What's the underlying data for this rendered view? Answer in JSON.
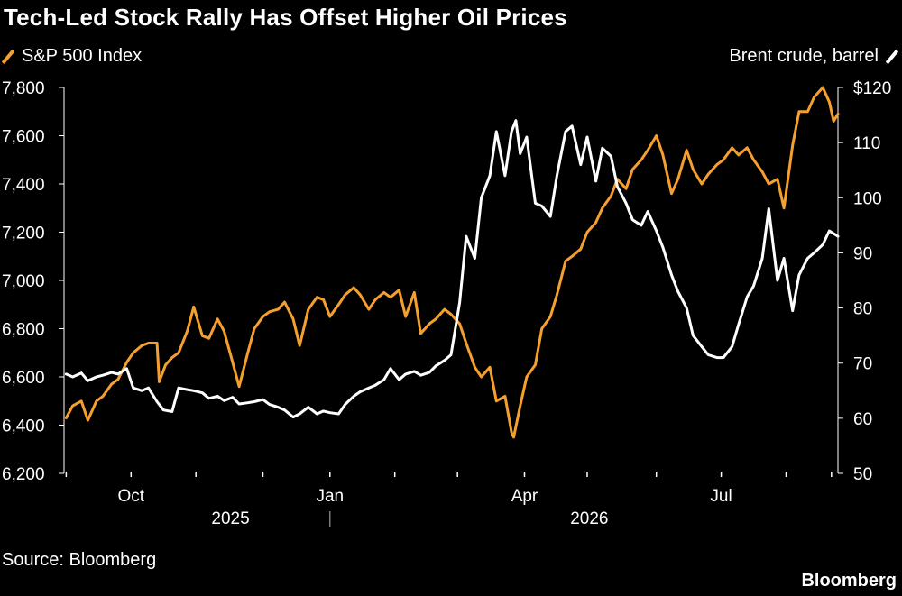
{
  "title": "Tech-Led Stock Rally Has Offset Higher Oil Prices",
  "source": "Source: Bloomberg",
  "brand": "Bloomberg",
  "legend": {
    "left_label": "S&P 500 Index",
    "right_label": "Brent crude, barrel"
  },
  "colors": {
    "background": "#000000",
    "sp500": "#f5a02e",
    "brent": "#ffffff"
  },
  "chart_data": {
    "type": "line",
    "title": "Tech-Led Stock Rally Has Offset Higher Oil Prices",
    "x_axis": {
      "range": [
        "2025-08-31",
        "2026-08-24"
      ],
      "ticks": [
        {
          "date": "2025-10-01",
          "label": "Oct"
        },
        {
          "date": "2026-01-01",
          "label": "Jan"
        },
        {
          "date": "2026-04-01",
          "label": "Apr"
        },
        {
          "date": "2026-07-01",
          "label": "Jul"
        }
      ],
      "minor_ticks": [
        "2025-09-01",
        "2025-10-31",
        "2025-12-01",
        "2026-01-31",
        "2026-03-01",
        "2026-04-30",
        "2026-06-01",
        "2026-07-31",
        "2026-08-21"
      ],
      "years": [
        {
          "label": "2025"
        },
        {
          "label": "2026"
        }
      ]
    },
    "y_left": {
      "min": 6200,
      "max": 7800,
      "ticks": [
        {
          "value": 6200,
          "label": "6,200"
        },
        {
          "value": 6400,
          "label": "6,400"
        },
        {
          "value": 6600,
          "label": "6,600"
        },
        {
          "value": 6800,
          "label": "6,800"
        },
        {
          "value": 7000,
          "label": "7,000"
        },
        {
          "value": 7200,
          "label": "7,200"
        },
        {
          "value": 7400,
          "label": "7,400"
        },
        {
          "value": 7600,
          "label": "7,600"
        },
        {
          "value": 7800,
          "label": "7,800"
        }
      ]
    },
    "y_right": {
      "min": 50,
      "max": 120,
      "ticks": [
        {
          "value": 50,
          "label": "50"
        },
        {
          "value": 60,
          "label": "60"
        },
        {
          "value": 70,
          "label": "70"
        },
        {
          "value": 80,
          "label": "80"
        },
        {
          "value": 90,
          "label": "90"
        },
        {
          "value": 100,
          "label": "100"
        },
        {
          "value": 110,
          "label": "110"
        },
        {
          "value": 120,
          "label": "$120"
        }
      ]
    },
    "grid": false,
    "series": [
      {
        "name": "S&P 500 Index",
        "axis": "left",
        "color": "#f5a02e",
        "points": [
          [
            "2025-09-01",
            6430
          ],
          [
            "2025-09-04",
            6480
          ],
          [
            "2025-09-08",
            6500
          ],
          [
            "2025-09-11",
            6420
          ],
          [
            "2025-09-15",
            6500
          ],
          [
            "2025-09-18",
            6520
          ],
          [
            "2025-09-22",
            6570
          ],
          [
            "2025-09-25",
            6590
          ],
          [
            "2025-09-29",
            6660
          ],
          [
            "2025-10-02",
            6700
          ],
          [
            "2025-10-06",
            6730
          ],
          [
            "2025-10-09",
            6740
          ],
          [
            "2025-10-13",
            6740
          ],
          [
            "2025-10-14",
            6580
          ],
          [
            "2025-10-17",
            6650
          ],
          [
            "2025-10-20",
            6680
          ],
          [
            "2025-10-23",
            6700
          ],
          [
            "2025-10-27",
            6790
          ],
          [
            "2025-10-30",
            6890
          ],
          [
            "2025-11-03",
            6770
          ],
          [
            "2025-11-06",
            6760
          ],
          [
            "2025-11-10",
            6840
          ],
          [
            "2025-11-13",
            6790
          ],
          [
            "2025-11-17",
            6660
          ],
          [
            "2025-11-20",
            6560
          ],
          [
            "2025-11-24",
            6700
          ],
          [
            "2025-11-27",
            6800
          ],
          [
            "2025-12-01",
            6850
          ],
          [
            "2025-12-04",
            6870
          ],
          [
            "2025-12-08",
            6880
          ],
          [
            "2025-12-11",
            6910
          ],
          [
            "2025-12-15",
            6840
          ],
          [
            "2025-12-18",
            6730
          ],
          [
            "2025-12-22",
            6880
          ],
          [
            "2025-12-26",
            6930
          ],
          [
            "2025-12-29",
            6920
          ],
          [
            "2026-01-01",
            6850
          ],
          [
            "2026-01-05",
            6900
          ],
          [
            "2026-01-08",
            6940
          ],
          [
            "2026-01-12",
            6970
          ],
          [
            "2026-01-15",
            6940
          ],
          [
            "2026-01-19",
            6880
          ],
          [
            "2026-01-22",
            6920
          ],
          [
            "2026-01-26",
            6950
          ],
          [
            "2026-01-29",
            6930
          ],
          [
            "2026-02-02",
            6960
          ],
          [
            "2026-02-05",
            6850
          ],
          [
            "2026-02-09",
            6950
          ],
          [
            "2026-02-12",
            6780
          ],
          [
            "2026-02-16",
            6820
          ],
          [
            "2026-02-19",
            6840
          ],
          [
            "2026-02-23",
            6880
          ],
          [
            "2026-02-26",
            6860
          ],
          [
            "2026-03-02",
            6820
          ],
          [
            "2026-03-05",
            6740
          ],
          [
            "2026-03-09",
            6640
          ],
          [
            "2026-03-12",
            6600
          ],
          [
            "2026-03-16",
            6640
          ],
          [
            "2026-03-19",
            6500
          ],
          [
            "2026-03-23",
            6520
          ],
          [
            "2026-03-26",
            6370
          ],
          [
            "2026-03-27",
            6350
          ],
          [
            "2026-03-30",
            6480
          ],
          [
            "2026-04-02",
            6600
          ],
          [
            "2026-04-06",
            6650
          ],
          [
            "2026-04-09",
            6800
          ],
          [
            "2026-04-13",
            6850
          ],
          [
            "2026-04-16",
            6940
          ],
          [
            "2026-04-20",
            7080
          ],
          [
            "2026-04-23",
            7100
          ],
          [
            "2026-04-27",
            7130
          ],
          [
            "2026-04-30",
            7200
          ],
          [
            "2026-05-04",
            7240
          ],
          [
            "2026-05-07",
            7300
          ],
          [
            "2026-05-11",
            7350
          ],
          [
            "2026-05-14",
            7420
          ],
          [
            "2026-05-18",
            7380
          ],
          [
            "2026-05-21",
            7460
          ],
          [
            "2026-05-25",
            7500
          ],
          [
            "2026-05-28",
            7540
          ],
          [
            "2026-06-01",
            7600
          ],
          [
            "2026-06-04",
            7520
          ],
          [
            "2026-06-08",
            7360
          ],
          [
            "2026-06-11",
            7420
          ],
          [
            "2026-06-15",
            7540
          ],
          [
            "2026-06-18",
            7460
          ],
          [
            "2026-06-22",
            7400
          ],
          [
            "2026-06-25",
            7440
          ],
          [
            "2026-06-29",
            7480
          ],
          [
            "2026-07-02",
            7500
          ],
          [
            "2026-07-06",
            7550
          ],
          [
            "2026-07-09",
            7520
          ],
          [
            "2026-07-13",
            7550
          ],
          [
            "2026-07-16",
            7500
          ],
          [
            "2026-07-20",
            7450
          ],
          [
            "2026-07-23",
            7400
          ],
          [
            "2026-07-27",
            7420
          ],
          [
            "2026-07-30",
            7300
          ],
          [
            "2026-08-03",
            7560
          ],
          [
            "2026-08-06",
            7700
          ],
          [
            "2026-08-10",
            7700
          ],
          [
            "2026-08-13",
            7760
          ],
          [
            "2026-08-17",
            7800
          ],
          [
            "2026-08-20",
            7740
          ],
          [
            "2026-08-22",
            7660
          ],
          [
            "2026-08-24",
            7690
          ]
        ]
      },
      {
        "name": "Brent crude, barrel",
        "axis": "right",
        "color": "#ffffff",
        "points": [
          [
            "2025-09-01",
            68
          ],
          [
            "2025-09-04",
            67.5
          ],
          [
            "2025-09-08",
            68.2
          ],
          [
            "2025-09-11",
            66.8
          ],
          [
            "2025-09-15",
            67.5
          ],
          [
            "2025-09-18",
            67.8
          ],
          [
            "2025-09-22",
            68.3
          ],
          [
            "2025-09-25",
            68.0
          ],
          [
            "2025-09-29",
            69
          ],
          [
            "2025-10-02",
            65.5
          ],
          [
            "2025-10-06",
            65.0
          ],
          [
            "2025-10-09",
            65.5
          ],
          [
            "2025-10-13",
            63.0
          ],
          [
            "2025-10-16",
            61.5
          ],
          [
            "2025-10-20",
            61.2
          ],
          [
            "2025-10-23",
            65.5
          ],
          [
            "2025-10-27",
            65.2
          ],
          [
            "2025-10-30",
            65.0
          ],
          [
            "2025-11-03",
            64.6
          ],
          [
            "2025-11-06",
            63.6
          ],
          [
            "2025-11-10",
            64.0
          ],
          [
            "2025-11-13",
            63.2
          ],
          [
            "2025-11-17",
            63.8
          ],
          [
            "2025-11-20",
            62.6
          ],
          [
            "2025-11-24",
            62.8
          ],
          [
            "2025-11-27",
            63.0
          ],
          [
            "2025-12-01",
            63.4
          ],
          [
            "2025-12-04",
            62.5
          ],
          [
            "2025-12-08",
            62.0
          ],
          [
            "2025-12-11",
            61.5
          ],
          [
            "2025-12-15",
            60.2
          ],
          [
            "2025-12-18",
            60.8
          ],
          [
            "2025-12-22",
            62.0
          ],
          [
            "2025-12-26",
            60.8
          ],
          [
            "2025-12-29",
            61.3
          ],
          [
            "2026-01-01",
            61.0
          ],
          [
            "2026-01-05",
            60.8
          ],
          [
            "2026-01-08",
            62.5
          ],
          [
            "2026-01-12",
            64.0
          ],
          [
            "2026-01-15",
            64.8
          ],
          [
            "2026-01-19",
            65.5
          ],
          [
            "2026-01-22",
            66.0
          ],
          [
            "2026-01-26",
            67.0
          ],
          [
            "2026-01-29",
            69.0
          ],
          [
            "2026-02-02",
            67.0
          ],
          [
            "2026-02-05",
            68.0
          ],
          [
            "2026-02-09",
            68.5
          ],
          [
            "2026-02-12",
            67.8
          ],
          [
            "2026-02-16",
            68.3
          ],
          [
            "2026-02-19",
            69.5
          ],
          [
            "2026-02-23",
            70.5
          ],
          [
            "2026-02-26",
            71.5
          ],
          [
            "2026-03-02",
            81
          ],
          [
            "2026-03-05",
            93
          ],
          [
            "2026-03-09",
            89
          ],
          [
            "2026-03-12",
            100
          ],
          [
            "2026-03-16",
            104
          ],
          [
            "2026-03-19",
            112
          ],
          [
            "2026-03-23",
            104
          ],
          [
            "2026-03-26",
            112
          ],
          [
            "2026-03-28",
            114
          ],
          [
            "2026-03-30",
            108
          ],
          [
            "2026-04-02",
            111
          ],
          [
            "2026-04-06",
            99
          ],
          [
            "2026-04-09",
            98.5
          ],
          [
            "2026-04-13",
            96.6
          ],
          [
            "2026-04-16",
            104
          ],
          [
            "2026-04-20",
            112
          ],
          [
            "2026-04-23",
            113
          ],
          [
            "2026-04-27",
            106
          ],
          [
            "2026-04-30",
            111
          ],
          [
            "2026-05-04",
            103
          ],
          [
            "2026-05-07",
            109
          ],
          [
            "2026-05-11",
            107.5
          ],
          [
            "2026-05-14",
            102
          ],
          [
            "2026-05-18",
            99
          ],
          [
            "2026-05-21",
            96
          ],
          [
            "2026-05-25",
            95
          ],
          [
            "2026-05-28",
            97.5
          ],
          [
            "2026-06-01",
            94
          ],
          [
            "2026-06-04",
            91
          ],
          [
            "2026-06-08",
            86
          ],
          [
            "2026-06-11",
            83
          ],
          [
            "2026-06-15",
            80
          ],
          [
            "2026-06-18",
            75
          ],
          [
            "2026-06-22",
            73
          ],
          [
            "2026-06-25",
            71.5
          ],
          [
            "2026-06-29",
            71.0
          ],
          [
            "2026-07-02",
            71.0
          ],
          [
            "2026-07-06",
            73.0
          ],
          [
            "2026-07-09",
            77.0
          ],
          [
            "2026-07-13",
            82.0
          ],
          [
            "2026-07-16",
            84.0
          ],
          [
            "2026-07-20",
            89.0
          ],
          [
            "2026-07-23",
            98.0
          ],
          [
            "2026-07-27",
            85.0
          ],
          [
            "2026-07-30",
            89.0
          ],
          [
            "2026-08-03",
            79.5
          ],
          [
            "2026-08-06",
            86.0
          ],
          [
            "2026-08-10",
            89.0
          ],
          [
            "2026-08-13",
            90.0
          ],
          [
            "2026-08-17",
            91.5
          ],
          [
            "2026-08-20",
            94.0
          ],
          [
            "2026-08-24",
            93.0
          ]
        ]
      }
    ]
  }
}
